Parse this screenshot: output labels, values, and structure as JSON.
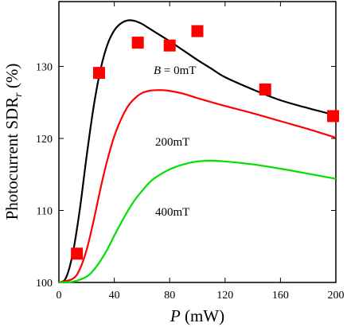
{
  "chart_data": {
    "type": "line",
    "xlabel": "P (mW)",
    "xlabel_parts": {
      "var": "P",
      "unit": " (mW)"
    },
    "ylabel": "Photocurrent SDR_r (%)",
    "ylabel_parts": {
      "main": "Photocurrent SDR",
      "sub": "r",
      "unit": " (%)"
    },
    "xlim": [
      0,
      200
    ],
    "ylim": [
      100,
      139
    ],
    "xticks": [
      0,
      40,
      80,
      120,
      160,
      200
    ],
    "yticks": [
      100,
      110,
      120,
      130
    ],
    "grid": false,
    "series": [
      {
        "label": "B = 0mT",
        "label_parts": {
          "var": "B",
          "text": " = 0mT"
        },
        "color": "#000000",
        "type": "line",
        "x": [
          0,
          5,
          10,
          15,
          20,
          25,
          30,
          35,
          40,
          45,
          50,
          55,
          60,
          65,
          70,
          80,
          90,
          100,
          110,
          120,
          140,
          160,
          180,
          200
        ],
        "y": [
          100,
          100.6,
          104.0,
          110.0,
          117.5,
          124.3,
          129.5,
          133.0,
          135.0,
          136.0,
          136.4,
          136.3,
          135.9,
          135.3,
          134.7,
          133.5,
          132.2,
          130.9,
          129.7,
          128.5,
          126.8,
          125.3,
          124.2,
          123.2
        ]
      },
      {
        "label": "200mT",
        "color": "#ff0000",
        "type": "line",
        "x": [
          0,
          10,
          15,
          20,
          25,
          30,
          35,
          40,
          45,
          50,
          55,
          60,
          65,
          70,
          75,
          80,
          90,
          100,
          120,
          140,
          160,
          180,
          200
        ],
        "y": [
          100,
          100.5,
          101.8,
          104.5,
          108.5,
          113.0,
          117.0,
          120.3,
          122.7,
          124.5,
          125.6,
          126.3,
          126.6,
          126.7,
          126.7,
          126.6,
          126.2,
          125.6,
          124.5,
          123.5,
          122.4,
          121.3,
          120.1
        ]
      },
      {
        "label": "400mT",
        "color": "#00e000",
        "type": "line",
        "x": [
          0,
          10,
          20,
          25,
          30,
          35,
          40,
          45,
          50,
          55,
          60,
          65,
          70,
          80,
          90,
          100,
          110,
          120,
          140,
          160,
          180,
          200
        ],
        "y": [
          100,
          100.1,
          100.8,
          101.7,
          103.0,
          104.6,
          106.5,
          108.3,
          110.0,
          111.5,
          112.7,
          113.8,
          114.6,
          115.7,
          116.4,
          116.8,
          116.9,
          116.8,
          116.4,
          115.8,
          115.1,
          114.4
        ]
      },
      {
        "label": "",
        "color": "#ff0000",
        "type": "scatter",
        "marker": "square",
        "x": [
          13,
          29,
          57,
          80,
          100,
          149,
          198
        ],
        "y": [
          104.0,
          129.1,
          133.3,
          132.9,
          134.9,
          126.8,
          123.1
        ]
      }
    ]
  }
}
